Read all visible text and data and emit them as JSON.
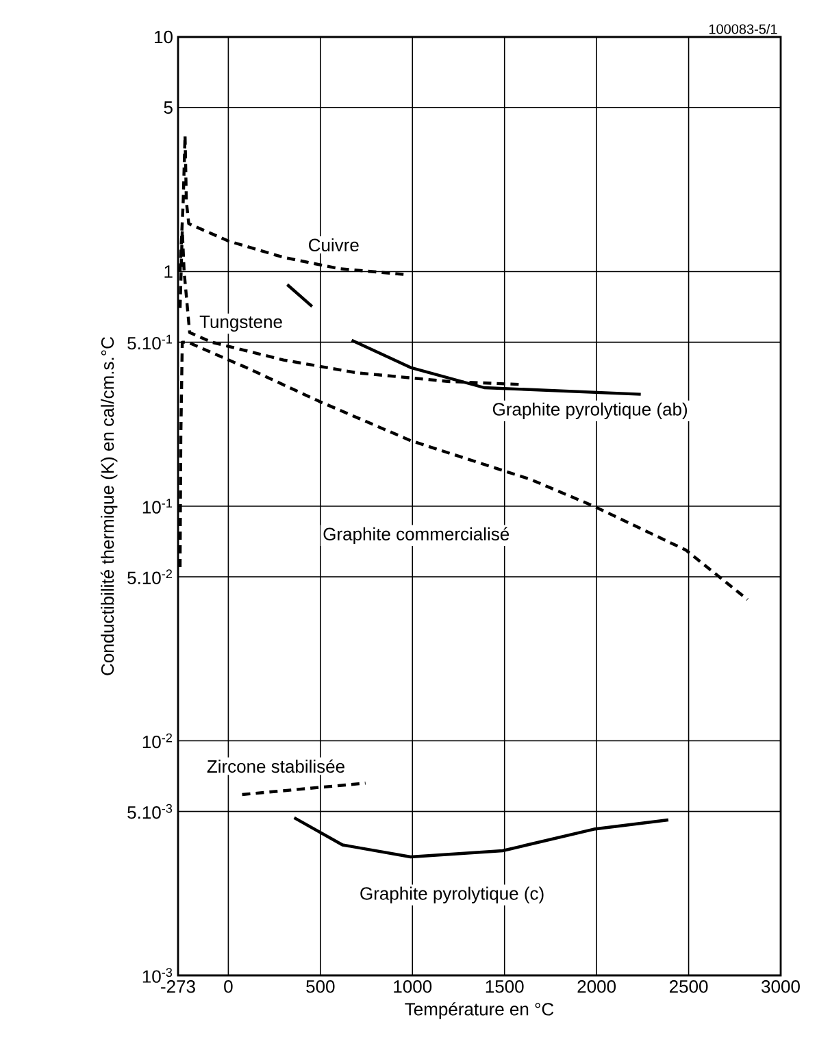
{
  "chart_data": {
    "type": "line",
    "xlabel": "Température en °C",
    "ylabel": "Conductibilité thermique (K) en cal/cm.s.°C",
    "annotations": [
      "100083-5/1"
    ],
    "log": "y",
    "grid": true,
    "xlim": [
      -273,
      3000
    ],
    "xticks": [
      -273,
      0,
      500,
      1000,
      1500,
      2000,
      2500,
      3000
    ],
    "ylim": [
      0.001,
      10
    ],
    "yticks": [
      {
        "value": 0.001,
        "label": "10$^{-3}$"
      },
      {
        "value": 0.005,
        "label": "5.10$^{-3}$"
      },
      {
        "value": 0.01,
        "label": "10$^{-2}$"
      },
      {
        "value": 0.05,
        "label": "5.10$^{-2}$"
      },
      {
        "value": 0.1,
        "label": "10$^{-1}$"
      },
      {
        "value": 0.5,
        "label": "5.10$^{-1}$"
      },
      1,
      5,
      10
    ],
    "series": [
      {
        "name": "Cuivre",
        "color": "#000000",
        "line_style": "dashed",
        "x": [
          -262,
          -245,
          -235,
          -228,
          -215,
          0,
          300,
          600,
          970
        ],
        "values": [
          1.0,
          2.0,
          3.8,
          2.0,
          1.6,
          1.35,
          1.15,
          1.03,
          0.97
        ]
      },
      {
        "name": "Tungstene",
        "color": "#000000",
        "line_style": "dashed",
        "x": [
          -262,
          -250,
          -240,
          -210,
          -90,
          300,
          700,
          1200,
          1600
        ],
        "values": [
          0.7,
          1.5,
          1.0,
          0.55,
          0.5,
          0.42,
          0.37,
          0.34,
          0.33
        ]
      },
      {
        "name": "Graphite pyrolytique (ab)",
        "color": "#000000",
        "line_style": "solid",
        "x": [
          320,
          455,
          560,
          670,
          990,
          1390,
          2240
        ],
        "values": [
          0.88,
          0.71,
          null,
          0.51,
          0.39,
          0.32,
          0.3
        ]
      },
      {
        "name": "Graphite commercialisé",
        "color": "#000000",
        "line_style": "dashed",
        "x": [
          -262,
          -258,
          -250,
          -220,
          97,
          493,
          993,
          1642,
          1985,
          2485,
          2820
        ],
        "values": [
          0.055,
          0.2,
          0.5,
          0.5,
          0.39,
          0.28,
          0.19,
          0.13,
          0.1,
          0.065,
          0.04
        ]
      },
      {
        "name": "Zircone stabilisée",
        "color": "#000000",
        "line_style": "dashed",
        "x": [
          75,
          745
        ],
        "values": [
          0.0059,
          0.0066
        ]
      },
      {
        "name": "Graphite pyrolytique (c)",
        "color": "#000000",
        "line_style": "solid",
        "x": [
          358,
          620,
          990,
          1490,
          1985,
          2390
        ],
        "values": [
          0.0047,
          0.0036,
          0.0032,
          0.0034,
          0.0042,
          0.0046
        ]
      }
    ]
  }
}
